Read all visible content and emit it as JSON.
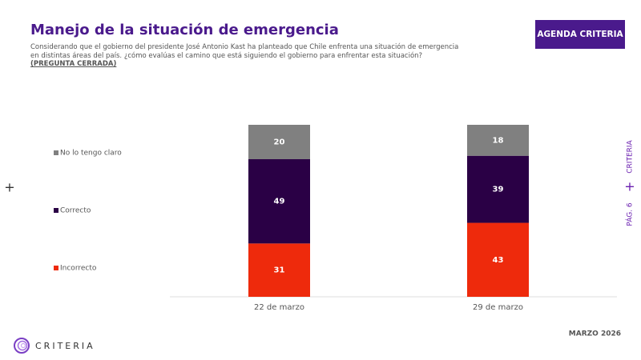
{
  "header": {
    "title": "Manejo de la situación de emergencia",
    "subtitle": "Considerando que el gobierno del presidente José Antonio Kast ha planteado que Chile enfrenta una situación de emergencia en distintas áreas del país. ¿cómo evalúas el camino que está siguiendo el gobierno para enfrentar esta situación?",
    "subtitle_note": "(PREGUNTA CERRADA)",
    "button": "AGENDA CRITERIA"
  },
  "side": {
    "brand": "CRITERIA",
    "page": "PÁG. 6"
  },
  "footer": {
    "date": "MARZO 2026",
    "logo_text": "CRITERIA"
  },
  "chart_data": {
    "type": "stacked-bar",
    "categories": [
      "22 de marzo",
      "29 de marzo"
    ],
    "series": [
      {
        "name": "Incorrecto",
        "color": "#ee2a0c",
        "values": [
          31,
          43
        ]
      },
      {
        "name": "Correcto",
        "color": "#2a0045",
        "values": [
          49,
          39
        ]
      },
      {
        "name": "No lo tengo claro",
        "color": "#808080",
        "values": [
          20,
          18
        ]
      }
    ],
    "ylim": [
      0,
      100
    ]
  }
}
